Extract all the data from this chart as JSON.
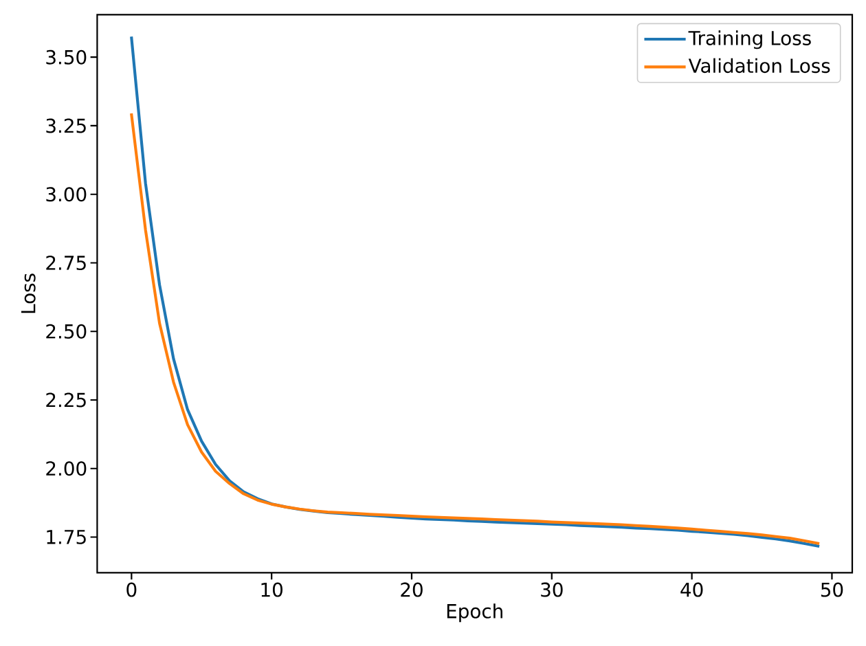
{
  "chart_data": {
    "type": "line",
    "xlabel": "Epoch",
    "ylabel": "Loss",
    "x": [
      0,
      1,
      2,
      3,
      4,
      5,
      6,
      7,
      8,
      9,
      10,
      11,
      12,
      13,
      14,
      15,
      16,
      17,
      18,
      19,
      20,
      21,
      22,
      23,
      24,
      25,
      26,
      27,
      28,
      29,
      30,
      31,
      32,
      33,
      34,
      35,
      36,
      37,
      38,
      39,
      40,
      41,
      42,
      43,
      44,
      45,
      46,
      47,
      48,
      49
    ],
    "series": [
      {
        "name": "Training Loss",
        "color": "#1f77b4",
        "values": [
          3.57,
          3.04,
          2.67,
          2.4,
          2.215,
          2.1,
          2.015,
          1.955,
          1.915,
          1.89,
          1.871,
          1.86,
          1.851,
          1.845,
          1.839,
          1.836,
          1.832,
          1.829,
          1.826,
          1.822,
          1.819,
          1.816,
          1.814,
          1.812,
          1.809,
          1.807,
          1.805,
          1.803,
          1.801,
          1.799,
          1.797,
          1.795,
          1.792,
          1.79,
          1.788,
          1.786,
          1.783,
          1.781,
          1.778,
          1.775,
          1.771,
          1.768,
          1.764,
          1.76,
          1.755,
          1.749,
          1.743,
          1.736,
          1.727,
          1.717
        ]
      },
      {
        "name": "Validation Loss",
        "color": "#ff7f0e",
        "values": [
          3.29,
          2.87,
          2.53,
          2.315,
          2.16,
          2.06,
          1.99,
          1.945,
          1.908,
          1.885,
          1.87,
          1.86,
          1.852,
          1.846,
          1.841,
          1.839,
          1.836,
          1.833,
          1.831,
          1.829,
          1.826,
          1.824,
          1.822,
          1.82,
          1.818,
          1.816,
          1.814,
          1.812,
          1.81,
          1.808,
          1.805,
          1.803,
          1.801,
          1.799,
          1.797,
          1.795,
          1.792,
          1.789,
          1.786,
          1.783,
          1.779,
          1.775,
          1.771,
          1.767,
          1.763,
          1.758,
          1.752,
          1.746,
          1.737,
          1.727
        ]
      }
    ],
    "xlim": [
      -2.45,
      51.45
    ],
    "ylim": [
      1.62,
      3.655
    ],
    "xticks": [
      0,
      10,
      20,
      30,
      40,
      50
    ],
    "yticks": [
      {
        "value": 1.75,
        "label": "1.75"
      },
      {
        "value": 2,
        "label": "2.00"
      },
      {
        "value": 2.25,
        "label": "2.25"
      },
      {
        "value": 2.5,
        "label": "2.50"
      },
      {
        "value": 2.75,
        "label": "2.75"
      },
      {
        "value": 3,
        "label": "3.00"
      },
      {
        "value": 3.25,
        "label": "3.25"
      },
      {
        "value": 3.5,
        "label": "3.50"
      }
    ],
    "legend": "top right"
  }
}
